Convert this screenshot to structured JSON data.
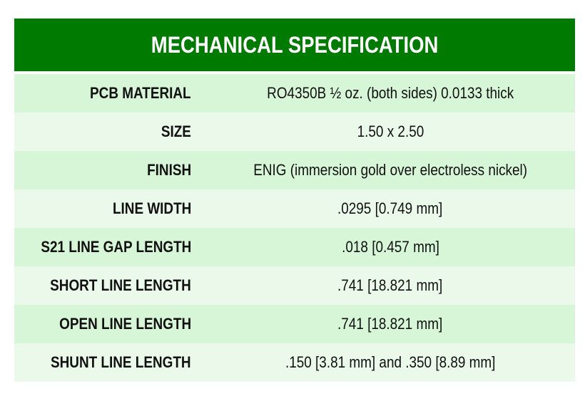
{
  "title": "MECHANICAL SPECIFICATION",
  "colors": {
    "header": "#007a00",
    "row_dark": "#d7f5d7",
    "row_light": "#ebf9eb"
  },
  "rows": [
    {
      "label": "PCB MATERIAL",
      "value": "RO4350B ½ oz. (both sides) 0.0133 thick"
    },
    {
      "label": "SIZE",
      "value": "1.50 x 2.50"
    },
    {
      "label": "FINISH",
      "value": "ENIG (immersion gold over electroless nickel)"
    },
    {
      "label": "LINE WIDTH",
      "value": ".0295 [0.749 mm]"
    },
    {
      "label": "S21 LINE GAP LENGTH",
      "value": ".018 [0.457 mm]"
    },
    {
      "label": "SHORT LINE LENGTH",
      "value": ".741 [18.821 mm]"
    },
    {
      "label": "OPEN LINE LENGTH",
      "value": ".741 [18.821 mm]"
    },
    {
      "label": "SHUNT LINE LENGTH",
      "value": ".150 [3.81 mm] and .350 [8.89 mm]"
    }
  ]
}
